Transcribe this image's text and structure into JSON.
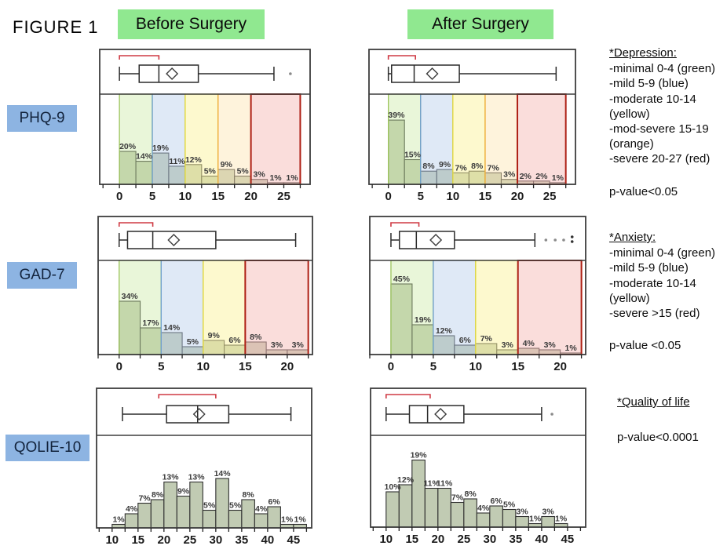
{
  "figure_title": "FIGURE 1",
  "column_headers": [
    "Before Surgery",
    "After Surgery"
  ],
  "row_labels": [
    "PHQ-9",
    "GAD-7",
    "QOLIE-10"
  ],
  "colors": {
    "header_bg": "#90e890",
    "row_label_bg": "#8db4e2",
    "bar_fill": "#c1cbb3",
    "bar_stroke": "#2f2f2f",
    "boxplot_stroke": "#2b2b2b",
    "bracket_red": "#cf3a44",
    "frame_stroke": "#3d3d3d",
    "outlier_gray": "#8a8a8a",
    "zones": {
      "green": {
        "fill": "rgba(201,232,160,0.40)",
        "stroke": "#9cc45c"
      },
      "blue": {
        "fill": "rgba(183,207,236,0.45)",
        "stroke": "#6f9fd0"
      },
      "yellow": {
        "fill": "rgba(251,244,157,0.50)",
        "stroke": "#e9dc33"
      },
      "orange": {
        "fill": "rgba(252,228,178,0.45)",
        "stroke": "#efa93a"
      },
      "red": {
        "fill": "rgba(246,188,183,0.50)",
        "stroke": "#ae2015"
      }
    }
  },
  "annotations": {
    "depression": {
      "title": "*Depression:",
      "lines": [
        "-minimal 0-4 (green)",
        "-mild 5-9 (blue)",
        "-moderate 10-14 (yellow)",
        "-mod-severe 15-19 (orange)",
        "-severe 20-27 (red)"
      ],
      "pvalue": "p-value<0.05"
    },
    "anxiety": {
      "title": "*Anxiety:",
      "lines": [
        "-minimal 0-4 (green)",
        "-mild 5-9  (blue)",
        "-moderate 10-14 (yellow)",
        "-severe >15 (red)"
      ],
      "pvalue": "p-value <0.05"
    },
    "qol": {
      "title": "*Quality of life",
      "lines": [],
      "pvalue": "p-value<0.0001"
    }
  },
  "chart_data": [
    {
      "id": "phq9_before",
      "row": "PHQ-9",
      "column": "Before Surgery",
      "type": "histogram+boxplot",
      "bin_start": 0,
      "bin_width": 2.5,
      "values_pct": [
        20,
        14,
        19,
        11,
        12,
        5,
        9,
        5,
        3,
        1,
        1
      ],
      "x_ticks": [
        0,
        5,
        10,
        15,
        20,
        25
      ],
      "x_range": [
        -3,
        29
      ],
      "zones": [
        {
          "color": "green",
          "from": 0,
          "to": 5
        },
        {
          "color": "blue",
          "from": 5,
          "to": 10
        },
        {
          "color": "yellow",
          "from": 10,
          "to": 15
        },
        {
          "color": "orange",
          "from": 15,
          "to": 20
        },
        {
          "color": "red",
          "from": 20,
          "to": 27.5
        }
      ],
      "boxplot": {
        "whisker_min": 0,
        "q1": 3,
        "median": 6,
        "q3": 12,
        "whisker_max": 23.5,
        "mean": 8,
        "outliers": [
          26
        ],
        "bracket": [
          0,
          6
        ]
      }
    },
    {
      "id": "phq9_after",
      "row": "PHQ-9",
      "column": "After Surgery",
      "type": "histogram+boxplot",
      "bin_start": 0,
      "bin_width": 2.5,
      "values_pct": [
        39,
        15,
        8,
        9,
        7,
        8,
        7,
        3,
        2,
        2,
        1
      ],
      "x_ticks": [
        0,
        5,
        10,
        15,
        20,
        25
      ],
      "x_range": [
        -3,
        29
      ],
      "zones": [
        {
          "color": "green",
          "from": 0,
          "to": 5
        },
        {
          "color": "blue",
          "from": 5,
          "to": 10
        },
        {
          "color": "yellow",
          "from": 10,
          "to": 15
        },
        {
          "color": "orange",
          "from": 15,
          "to": 20
        },
        {
          "color": "red",
          "from": 20,
          "to": 27.5
        }
      ],
      "boxplot": {
        "whisker_min": 0,
        "q1": 0.5,
        "median": 4,
        "q3": 11,
        "whisker_max": 26,
        "mean": 6.8,
        "outliers": [],
        "bracket": [
          0,
          4.2
        ]
      }
    },
    {
      "id": "gad7_before",
      "row": "GAD-7",
      "column": "Before Surgery",
      "type": "histogram+boxplot",
      "bin_start": 0,
      "bin_width": 2.5,
      "values_pct": [
        34,
        17,
        14,
        5,
        9,
        6,
        8,
        3,
        3
      ],
      "x_ticks": [
        0,
        5,
        10,
        15,
        20
      ],
      "x_range": [
        -2.5,
        23
      ],
      "zones": [
        {
          "color": "green",
          "from": 0,
          "to": 5
        },
        {
          "color": "blue",
          "from": 5,
          "to": 10
        },
        {
          "color": "yellow",
          "from": 10,
          "to": 15
        },
        {
          "color": "red",
          "from": 15,
          "to": 22.5
        }
      ],
      "boxplot": {
        "whisker_min": 0,
        "q1": 1,
        "median": 4,
        "q3": 11.5,
        "whisker_max": 21,
        "mean": 6.5,
        "outliers": [],
        "bracket": [
          0,
          4
        ]
      }
    },
    {
      "id": "gad7_after",
      "row": "GAD-7",
      "column": "After Surgery",
      "type": "histogram+boxplot",
      "bin_start": 0,
      "bin_width": 2.5,
      "values_pct": [
        45,
        19,
        12,
        6,
        7,
        3,
        4,
        3,
        1
      ],
      "x_ticks": [
        0,
        5,
        10,
        15,
        20
      ],
      "x_range": [
        -2.5,
        23
      ],
      "zones": [
        {
          "color": "green",
          "from": 0,
          "to": 5
        },
        {
          "color": "blue",
          "from": 5,
          "to": 10
        },
        {
          "color": "yellow",
          "from": 10,
          "to": 15
        },
        {
          "color": "red",
          "from": 15,
          "to": 22.5
        }
      ],
      "boxplot": {
        "whisker_min": 0,
        "q1": 1,
        "median": 3,
        "q3": 7.5,
        "whisker_max": 17,
        "mean": 5.3,
        "outliers": [
          18.3,
          19.4,
          20.4
        ],
        "double_dot": 21.4,
        "bracket": [
          0,
          3.3
        ]
      }
    },
    {
      "id": "qolie_before",
      "row": "QOLIE-10",
      "column": "Before Surgery",
      "type": "histogram+boxplot",
      "bin_start": 10,
      "bin_width": 2.5,
      "values_pct": [
        1,
        4,
        7,
        8,
        13,
        9,
        13,
        5,
        14,
        5,
        8,
        4,
        6,
        1,
        1
      ],
      "x_ticks": [
        10,
        15,
        20,
        25,
        30,
        35,
        40,
        45
      ],
      "x_range": [
        7,
        48.5
      ],
      "zones": [],
      "boxplot": {
        "whisker_min": 12,
        "q1": 20.5,
        "median": 26.5,
        "q3": 32.5,
        "whisker_max": 44.5,
        "mean": 26.8,
        "outliers": [],
        "bracket": [
          19,
          30
        ]
      }
    },
    {
      "id": "qolie_after",
      "row": "QOLIE-10",
      "column": "After Surgery",
      "type": "histogram+boxplot",
      "bin_start": 10,
      "bin_width": 2.5,
      "values_pct": [
        10,
        12,
        19,
        11,
        11,
        7,
        8,
        4,
        6,
        5,
        3,
        1,
        3,
        1
      ],
      "x_ticks": [
        10,
        15,
        20,
        25,
        30,
        35,
        40,
        45
      ],
      "x_range": [
        7,
        48.5
      ],
      "zones": [],
      "boxplot": {
        "whisker_min": 10,
        "q1": 14.5,
        "median": 18,
        "q3": 25,
        "whisker_max": 40,
        "mean": 20.5,
        "outliers": [
          42
        ],
        "bracket": [
          10,
          18.5
        ]
      }
    }
  ]
}
